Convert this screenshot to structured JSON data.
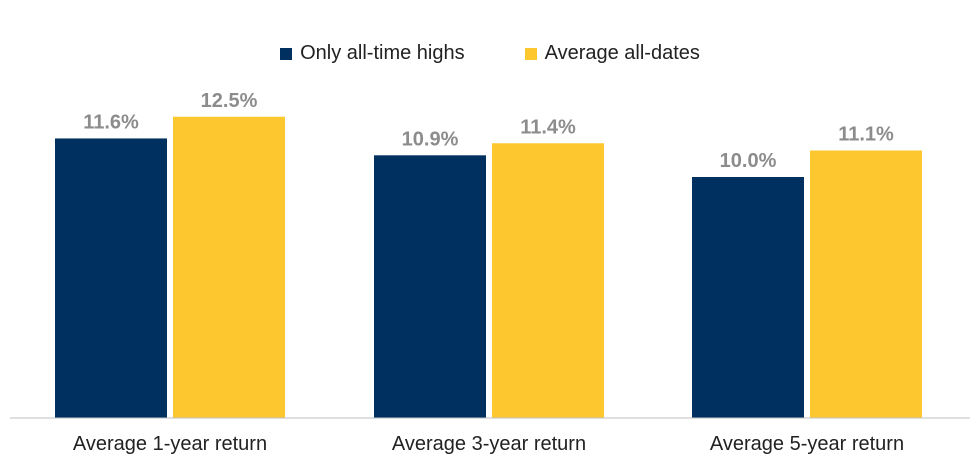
{
  "chart_data": {
    "type": "bar",
    "title": "",
    "xlabel": "",
    "ylabel": "",
    "categories": [
      "Average 1-year return",
      "Average 3-year return",
      "Average 5-year return"
    ],
    "series": [
      {
        "name": "Only all-time highs",
        "color": "#003060",
        "values": [
          11.6,
          10.9,
          10.0
        ],
        "labels": [
          "11.6%",
          "10.9%",
          "10.0%"
        ]
      },
      {
        "name": "Average all-dates",
        "color": "#FDC82F",
        "values": [
          12.5,
          11.4,
          11.1
        ],
        "labels": [
          "12.5%",
          "11.4%",
          "11.1%"
        ]
      }
    ],
    "ylim": [
      0,
      13.0
    ],
    "grid": false,
    "legend_position": "top-center"
  }
}
